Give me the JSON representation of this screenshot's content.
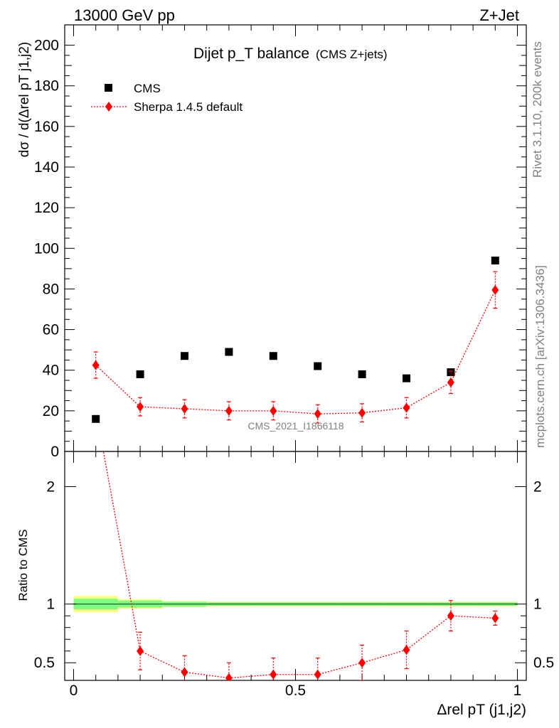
{
  "header": {
    "left_title": "13000 GeV pp",
    "right_title": "Z+Jet"
  },
  "side_labels": {
    "rivet": "Rivet 3.1.10,  200k events",
    "mcplots": "mcplots.cern.ch [arXiv:1306.3436]"
  },
  "watermark": "CMS_2021_I1866118",
  "colors": {
    "data": "#000000",
    "mc": "#ff0000",
    "band_inner": "#7fff7f",
    "band_outer": "#ffff7f",
    "band_line": "#2c6e3c"
  },
  "chart_data": [
    {
      "type": "scatter",
      "title": "Dijet p_T balance",
      "subtitle": "(CMS Z+jets)",
      "ylabel": "dσ / d(Δrel pT j1,j2)",
      "xlim": [
        -0.02,
        1.02
      ],
      "ylim": [
        0,
        210
      ],
      "yticks": [
        0,
        20,
        40,
        60,
        80,
        100,
        120,
        140,
        160,
        180,
        200
      ],
      "ytick_labels": [
        "0",
        "20",
        "40",
        "60",
        "80",
        "100",
        "120",
        "140",
        "160",
        "180",
        "200"
      ],
      "legend_position": "top-left",
      "series": [
        {
          "name": "CMS",
          "marker": "square",
          "x": [
            0.05,
            0.15,
            0.25,
            0.35,
            0.45,
            0.55,
            0.65,
            0.75,
            0.85,
            0.95
          ],
          "y": [
            16,
            38,
            47,
            49,
            47,
            42,
            38,
            36,
            39,
            94
          ]
        },
        {
          "name": "Sherpa 1.4.5 default",
          "marker": "diamond",
          "line": "dotted",
          "x": [
            0.05,
            0.15,
            0.25,
            0.35,
            0.45,
            0.55,
            0.65,
            0.75,
            0.85,
            0.95
          ],
          "y": [
            42.5,
            22,
            21,
            20,
            20,
            18.5,
            19,
            21.5,
            34,
            79.5
          ],
          "yerr": [
            6.5,
            4.5,
            4.5,
            4.5,
            4.5,
            4.5,
            4.5,
            5,
            5.5,
            9
          ]
        }
      ]
    },
    {
      "type": "line",
      "ylabel": "Ratio to CMS",
      "xlabel": "Δrel pT (j1,j2)",
      "xlim": [
        -0.02,
        1.02
      ],
      "ylim": [
        0.35,
        2.3
      ],
      "xticks": [
        0,
        0.5,
        1
      ],
      "xtick_labels": [
        "0",
        "0.5",
        "1"
      ],
      "yticks": [
        0.5,
        1,
        2
      ],
      "ytick_labels": [
        "0.5",
        "1",
        "2"
      ],
      "reference_band": {
        "x_edges": [
          0.0,
          0.1,
          0.2,
          0.3,
          0.4,
          0.5,
          0.6,
          0.7,
          0.8,
          0.9,
          1.0
        ],
        "inner_halfwidth": [
          0.045,
          0.03,
          0.02,
          0.015,
          0.015,
          0.015,
          0.015,
          0.015,
          0.015,
          0.015
        ],
        "outer_halfwidth": [
          0.07,
          0.04,
          0.025,
          0.02,
          0.02,
          0.02,
          0.02,
          0.02,
          0.02,
          0.02
        ]
      },
      "series": [
        {
          "name": "Sherpa 1.4.5 default",
          "x": [
            0.05,
            0.15,
            0.25,
            0.35,
            0.45,
            0.55,
            0.65,
            0.75,
            0.85,
            0.95
          ],
          "y": [
            2.65,
            0.6,
            0.42,
            0.37,
            0.4,
            0.4,
            0.5,
            0.61,
            0.9,
            0.88
          ],
          "yerr_lo": [
            0.3,
            0.16,
            0.14,
            0.13,
            0.14,
            0.14,
            0.15,
            0.16,
            0.13,
            0.06
          ],
          "yerr_hi": [
            0.3,
            0.16,
            0.14,
            0.13,
            0.14,
            0.14,
            0.15,
            0.16,
            0.13,
            0.06
          ]
        }
      ]
    }
  ]
}
